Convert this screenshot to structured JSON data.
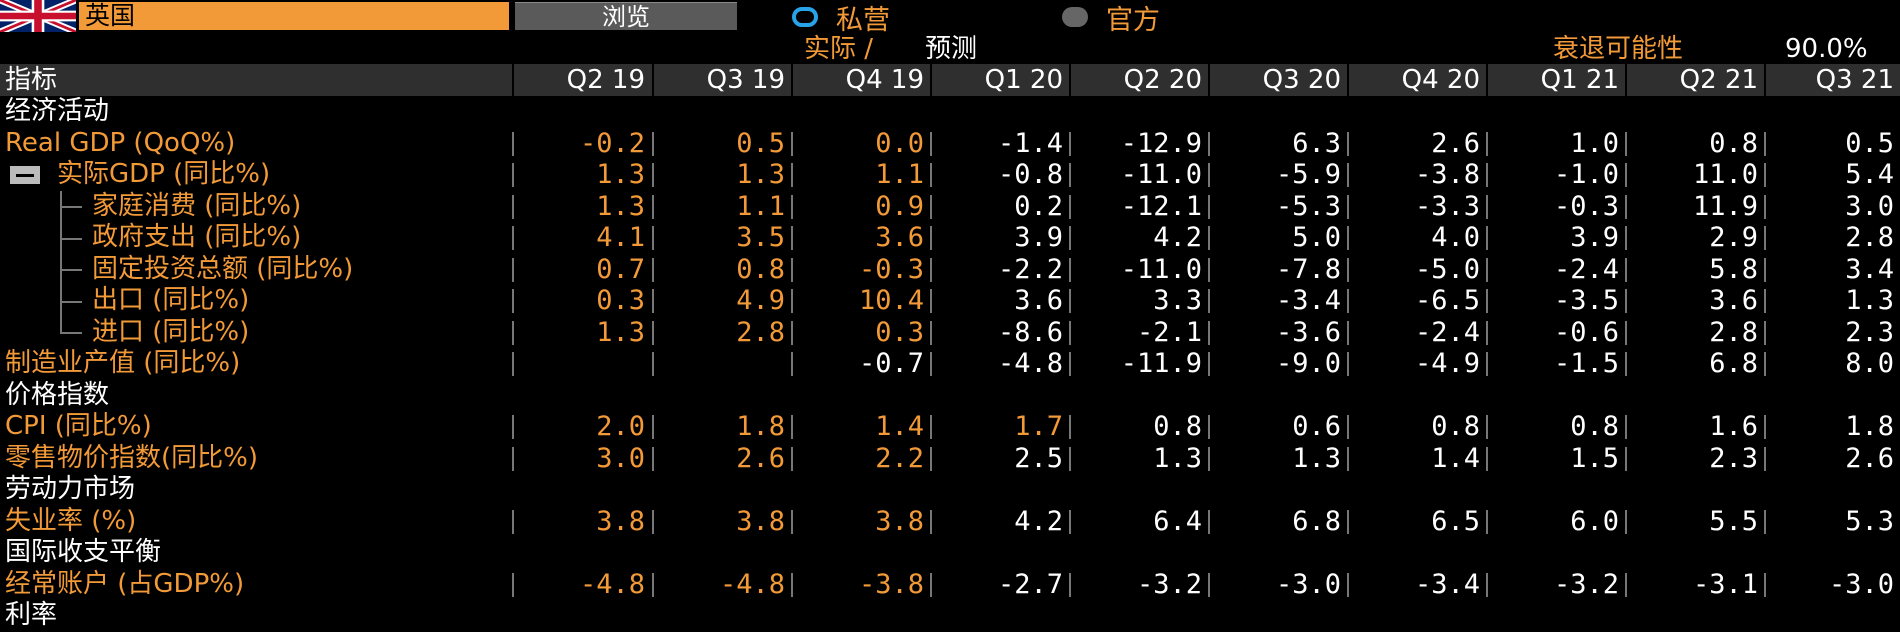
{
  "header": {
    "country": "英国",
    "browse_label": "浏览",
    "source_private": "私营",
    "source_official": "官方",
    "actual_label": "实际 /",
    "forecast_label": "预测",
    "recession_label": "衰退可能性",
    "recession_value": "90.0%"
  },
  "table": {
    "first_col": "指标",
    "quarters": [
      "Q2 19",
      "Q3 19",
      "Q4 19",
      "Q1 20",
      "Q2 20",
      "Q3 20",
      "Q4 20",
      "Q1 21",
      "Q2 21",
      "Q3 21"
    ],
    "rows": [
      {
        "type": "cat",
        "label": "经济活动"
      },
      {
        "type": "ind",
        "label": "Real GDP (QoQ%)",
        "values": [
          "-0.2",
          "0.5",
          "0.0",
          "-1.4",
          "-12.9",
          "6.3",
          "2.6",
          "1.0",
          "0.8",
          "0.5"
        ],
        "orange_count": 3
      },
      {
        "type": "sub2",
        "label": "实际GDP (同比%)",
        "values": [
          "1.3",
          "1.3",
          "1.1",
          "-0.8",
          "-11.0",
          "-5.9",
          "-3.8",
          "-1.0",
          "11.0",
          "5.4"
        ],
        "orange_count": 3
      },
      {
        "type": "sub",
        "label": "家庭消费 (同比%)",
        "values": [
          "1.3",
          "1.1",
          "0.9",
          "0.2",
          "-12.1",
          "-5.3",
          "-3.3",
          "-0.3",
          "11.9",
          "3.0"
        ],
        "orange_count": 3
      },
      {
        "type": "sub",
        "label": "政府支出 (同比%)",
        "values": [
          "4.1",
          "3.5",
          "3.6",
          "3.9",
          "4.2",
          "5.0",
          "4.0",
          "3.9",
          "2.9",
          "2.8"
        ],
        "orange_count": 3
      },
      {
        "type": "sub",
        "label": "固定投资总额 (同比%)",
        "values": [
          "0.7",
          "0.8",
          "-0.3",
          "-2.2",
          "-11.0",
          "-7.8",
          "-5.0",
          "-2.4",
          "5.8",
          "3.4"
        ],
        "orange_count": 3
      },
      {
        "type": "sub",
        "label": "出口 (同比%)",
        "values": [
          "0.3",
          "4.9",
          "10.4",
          "3.6",
          "3.3",
          "-3.4",
          "-6.5",
          "-3.5",
          "3.6",
          "1.3"
        ],
        "orange_count": 3
      },
      {
        "type": "sub",
        "label": "进口 (同比%)",
        "values": [
          "1.3",
          "2.8",
          "0.3",
          "-8.6",
          "-2.1",
          "-3.6",
          "-2.4",
          "-0.6",
          "2.8",
          "2.3"
        ],
        "orange_count": 3
      },
      {
        "type": "ind",
        "label": "制造业产值 (同比%)",
        "values": [
          "",
          "",
          "-0.7",
          "-4.8",
          "-11.9",
          "-9.0",
          "-4.9",
          "-1.5",
          "6.8",
          "8.0"
        ],
        "orange_count": 0
      },
      {
        "type": "cat",
        "label": "价格指数"
      },
      {
        "type": "ind",
        "label": "CPI (同比%)",
        "values": [
          "2.0",
          "1.8",
          "1.4",
          "1.7",
          "0.8",
          "0.6",
          "0.8",
          "0.8",
          "1.6",
          "1.8"
        ],
        "orange_count": 4
      },
      {
        "type": "ind",
        "label": "零售物价指数(同比%)",
        "values": [
          "3.0",
          "2.6",
          "2.2",
          "2.5",
          "1.3",
          "1.3",
          "1.4",
          "1.5",
          "2.3",
          "2.6"
        ],
        "orange_count": 3
      },
      {
        "type": "cat",
        "label": "劳动力市场"
      },
      {
        "type": "ind",
        "label": "失业率 (%)",
        "values": [
          "3.8",
          "3.8",
          "3.8",
          "4.2",
          "6.4",
          "6.8",
          "6.5",
          "6.0",
          "5.5",
          "5.3"
        ],
        "orange_count": 3
      },
      {
        "type": "cat",
        "label": "国际收支平衡"
      },
      {
        "type": "ind",
        "label": "经常账户 (占GDP%)",
        "values": [
          "-4.8",
          "-4.8",
          "-3.8",
          "-2.7",
          "-3.2",
          "-3.0",
          "-3.4",
          "-3.2",
          "-3.1",
          "-3.0"
        ],
        "orange_count": 3
      },
      {
        "type": "cat",
        "label": "利率"
      }
    ]
  }
}
